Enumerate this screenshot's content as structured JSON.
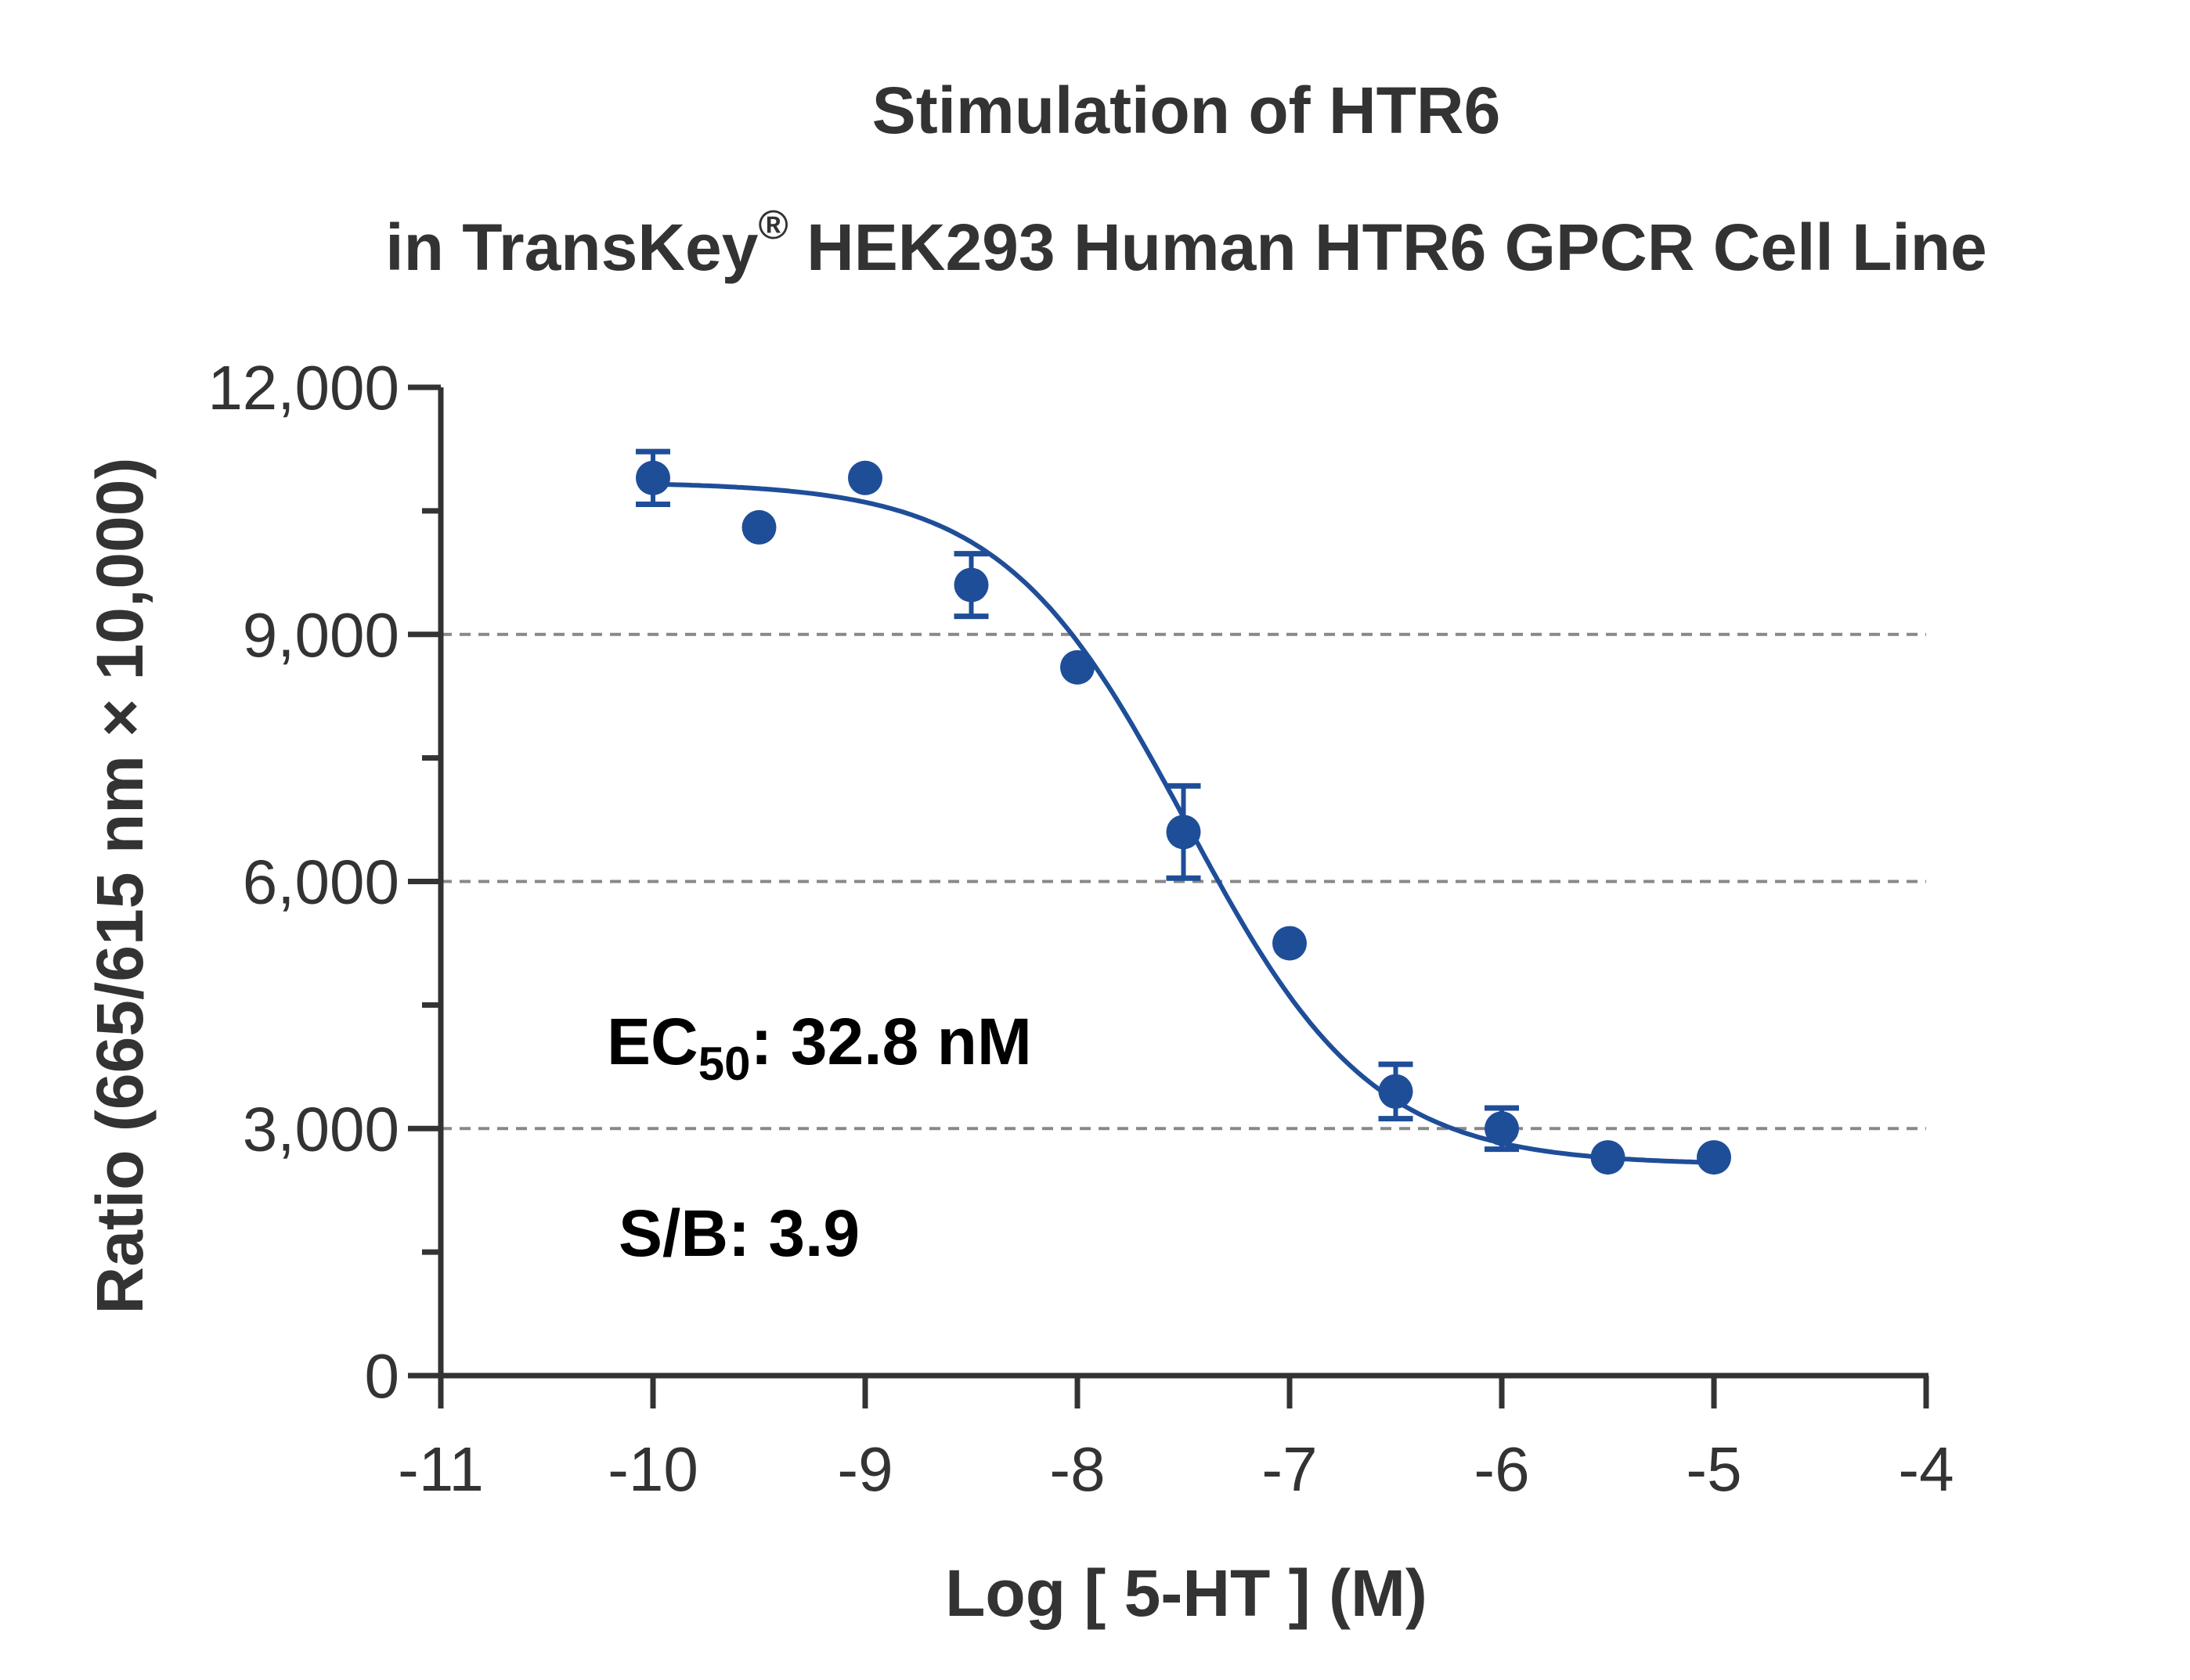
{
  "chart_data": {
    "type": "scatter",
    "title": "Stimulation of  HTR6",
    "subtitle_prefix": "in TransKey",
    "subtitle_superscript": "®",
    "subtitle_suffix": " HEK293 Human HTR6 GPCR Cell Line",
    "xlabel": "Log [ 5-HT ]  (M)",
    "ylabel": "Ratio (665/615 nm × 10,000)",
    "xlim": [
      -11,
      -4
    ],
    "ylim": [
      0,
      12000
    ],
    "x_ticks": [
      -11,
      -10,
      -9,
      -8,
      -7,
      -6,
      -5,
      -4
    ],
    "x_tick_labels": [
      "-11",
      "-10",
      "-9",
      "-8",
      "-7",
      "-6",
      "-5",
      "-4"
    ],
    "y_ticks": [
      0,
      3000,
      6000,
      9000,
      12000
    ],
    "y_tick_labels": [
      "0",
      "3,000",
      "6,000",
      "9,000",
      "12,000"
    ],
    "grid": "horizontal dashed at 3,000 / 6,000 / 9,000",
    "color": "#1f4e99",
    "series": [
      {
        "x": [
          -10,
          -9.5,
          -9,
          -8.5,
          -8,
          -7.5,
          -7,
          -6.5,
          -6,
          -5.5,
          -5
        ],
        "y": [
          10900,
          10300,
          10900,
          9600,
          8600,
          6600,
          5250,
          3450,
          3000,
          2650,
          2650
        ],
        "error": [
          320,
          0,
          0,
          380,
          0,
          560,
          0,
          330,
          250,
          0,
          0
        ]
      }
    ],
    "curve": {
      "type": "four-parameter logistic",
      "top": 10850,
      "bottom": 2560,
      "log_ec50": -7.484,
      "hill": 1.0
    },
    "annotations": {
      "ec50_prefix": "EC",
      "ec50_sub": "50",
      "ec50_value": ": 32.8 nM",
      "sb": "S/B: 3.9"
    }
  }
}
